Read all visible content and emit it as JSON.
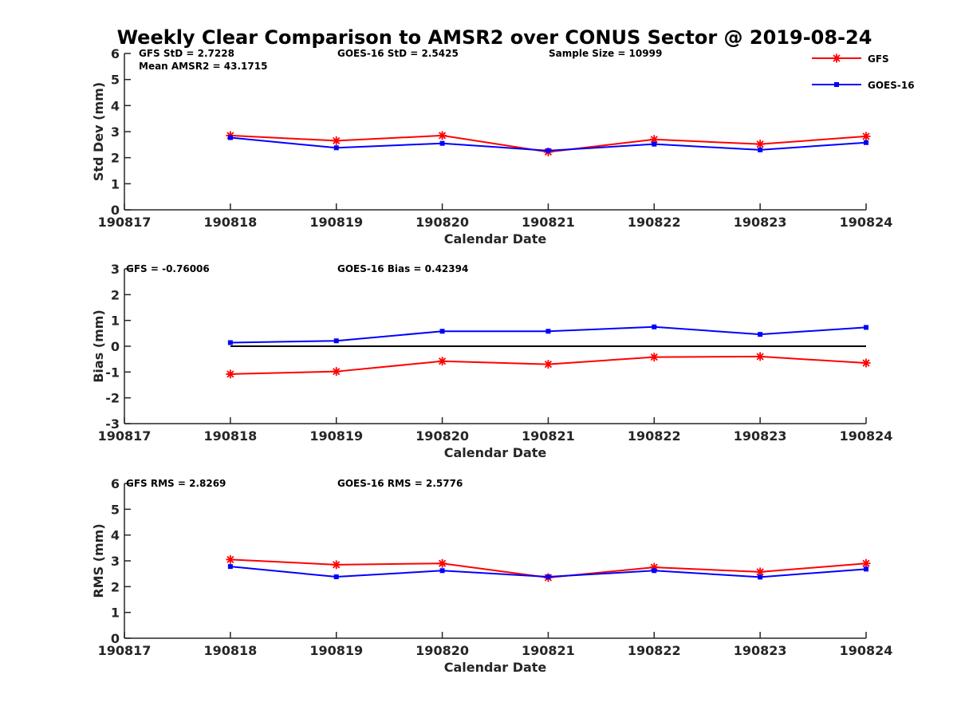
{
  "chart_data": [
    {
      "type": "line",
      "title": "Weekly Clear Comparison to AMSR2 over CONUS Sector @ 2019-08-24",
      "xlabel": "Calendar Date",
      "ylabel": "Std Dev (mm)",
      "x_ticks": [
        "190817",
        "190818",
        "190819",
        "190820",
        "190821",
        "190822",
        "190823",
        "190824"
      ],
      "y_ticks": [
        "0",
        "1",
        "2",
        "3",
        "4",
        "5",
        "6"
      ],
      "ylim": [
        0,
        6
      ],
      "grid": false,
      "x": [
        "190818",
        "190819",
        "190820",
        "190821",
        "190822",
        "190823",
        "190824"
      ],
      "series": [
        {
          "name": "GFS",
          "color": "#ff0000",
          "marker": "star",
          "values": [
            2.85,
            2.65,
            2.85,
            2.22,
            2.7,
            2.52,
            2.82
          ]
        },
        {
          "name": "GOES-16",
          "color": "#0000ff",
          "marker": "square",
          "values": [
            2.77,
            2.38,
            2.55,
            2.27,
            2.52,
            2.3,
            2.58
          ]
        }
      ],
      "annotations": [
        "GFS StD = 2.7228",
        "GOES-16 StD = 2.5425",
        "Sample Size = 10999",
        "Mean AMSR2 = 43.1715"
      ],
      "legend": {
        "position": "top-right",
        "entries": [
          "GFS",
          "GOES-16"
        ]
      }
    },
    {
      "type": "line",
      "xlabel": "Calendar Date",
      "ylabel": "Bias (mm)",
      "x_ticks": [
        "190817",
        "190818",
        "190819",
        "190820",
        "190821",
        "190822",
        "190823",
        "190824"
      ],
      "y_ticks": [
        "-3",
        "-2",
        "-1",
        "0",
        "1",
        "2",
        "3"
      ],
      "ylim": [
        -3,
        3
      ],
      "grid": false,
      "zero_line": true,
      "x": [
        "190818",
        "190819",
        "190820",
        "190821",
        "190822",
        "190823",
        "190824"
      ],
      "series": [
        {
          "name": "GFS",
          "color": "#ff0000",
          "marker": "star",
          "values": [
            -1.08,
            -0.98,
            -0.58,
            -0.7,
            -0.42,
            -0.4,
            -0.65
          ]
        },
        {
          "name": "GOES-16",
          "color": "#0000ff",
          "marker": "square",
          "values": [
            0.14,
            0.21,
            0.58,
            0.58,
            0.75,
            0.46,
            0.73
          ]
        }
      ],
      "annotations": [
        "GFS = -0.76006",
        "GOES-16 Bias  = 0.42394"
      ]
    },
    {
      "type": "line",
      "xlabel": "Calendar Date",
      "ylabel": "RMS (mm)",
      "x_ticks": [
        "190817",
        "190818",
        "190819",
        "190820",
        "190821",
        "190822",
        "190823",
        "190824"
      ],
      "y_ticks": [
        "0",
        "1",
        "2",
        "3",
        "4",
        "5",
        "6"
      ],
      "ylim": [
        0,
        6
      ],
      "grid": false,
      "x": [
        "190818",
        "190819",
        "190820",
        "190821",
        "190822",
        "190823",
        "190824"
      ],
      "series": [
        {
          "name": "GFS",
          "color": "#ff0000",
          "marker": "star",
          "values": [
            3.05,
            2.85,
            2.9,
            2.35,
            2.75,
            2.57,
            2.9
          ]
        },
        {
          "name": "GOES-16",
          "color": "#0000ff",
          "marker": "square",
          "values": [
            2.78,
            2.38,
            2.62,
            2.38,
            2.62,
            2.37,
            2.68
          ]
        }
      ],
      "annotations": [
        "GFS RMS = 2.8269",
        "GOES-16 RMS = 2.5776"
      ]
    }
  ]
}
